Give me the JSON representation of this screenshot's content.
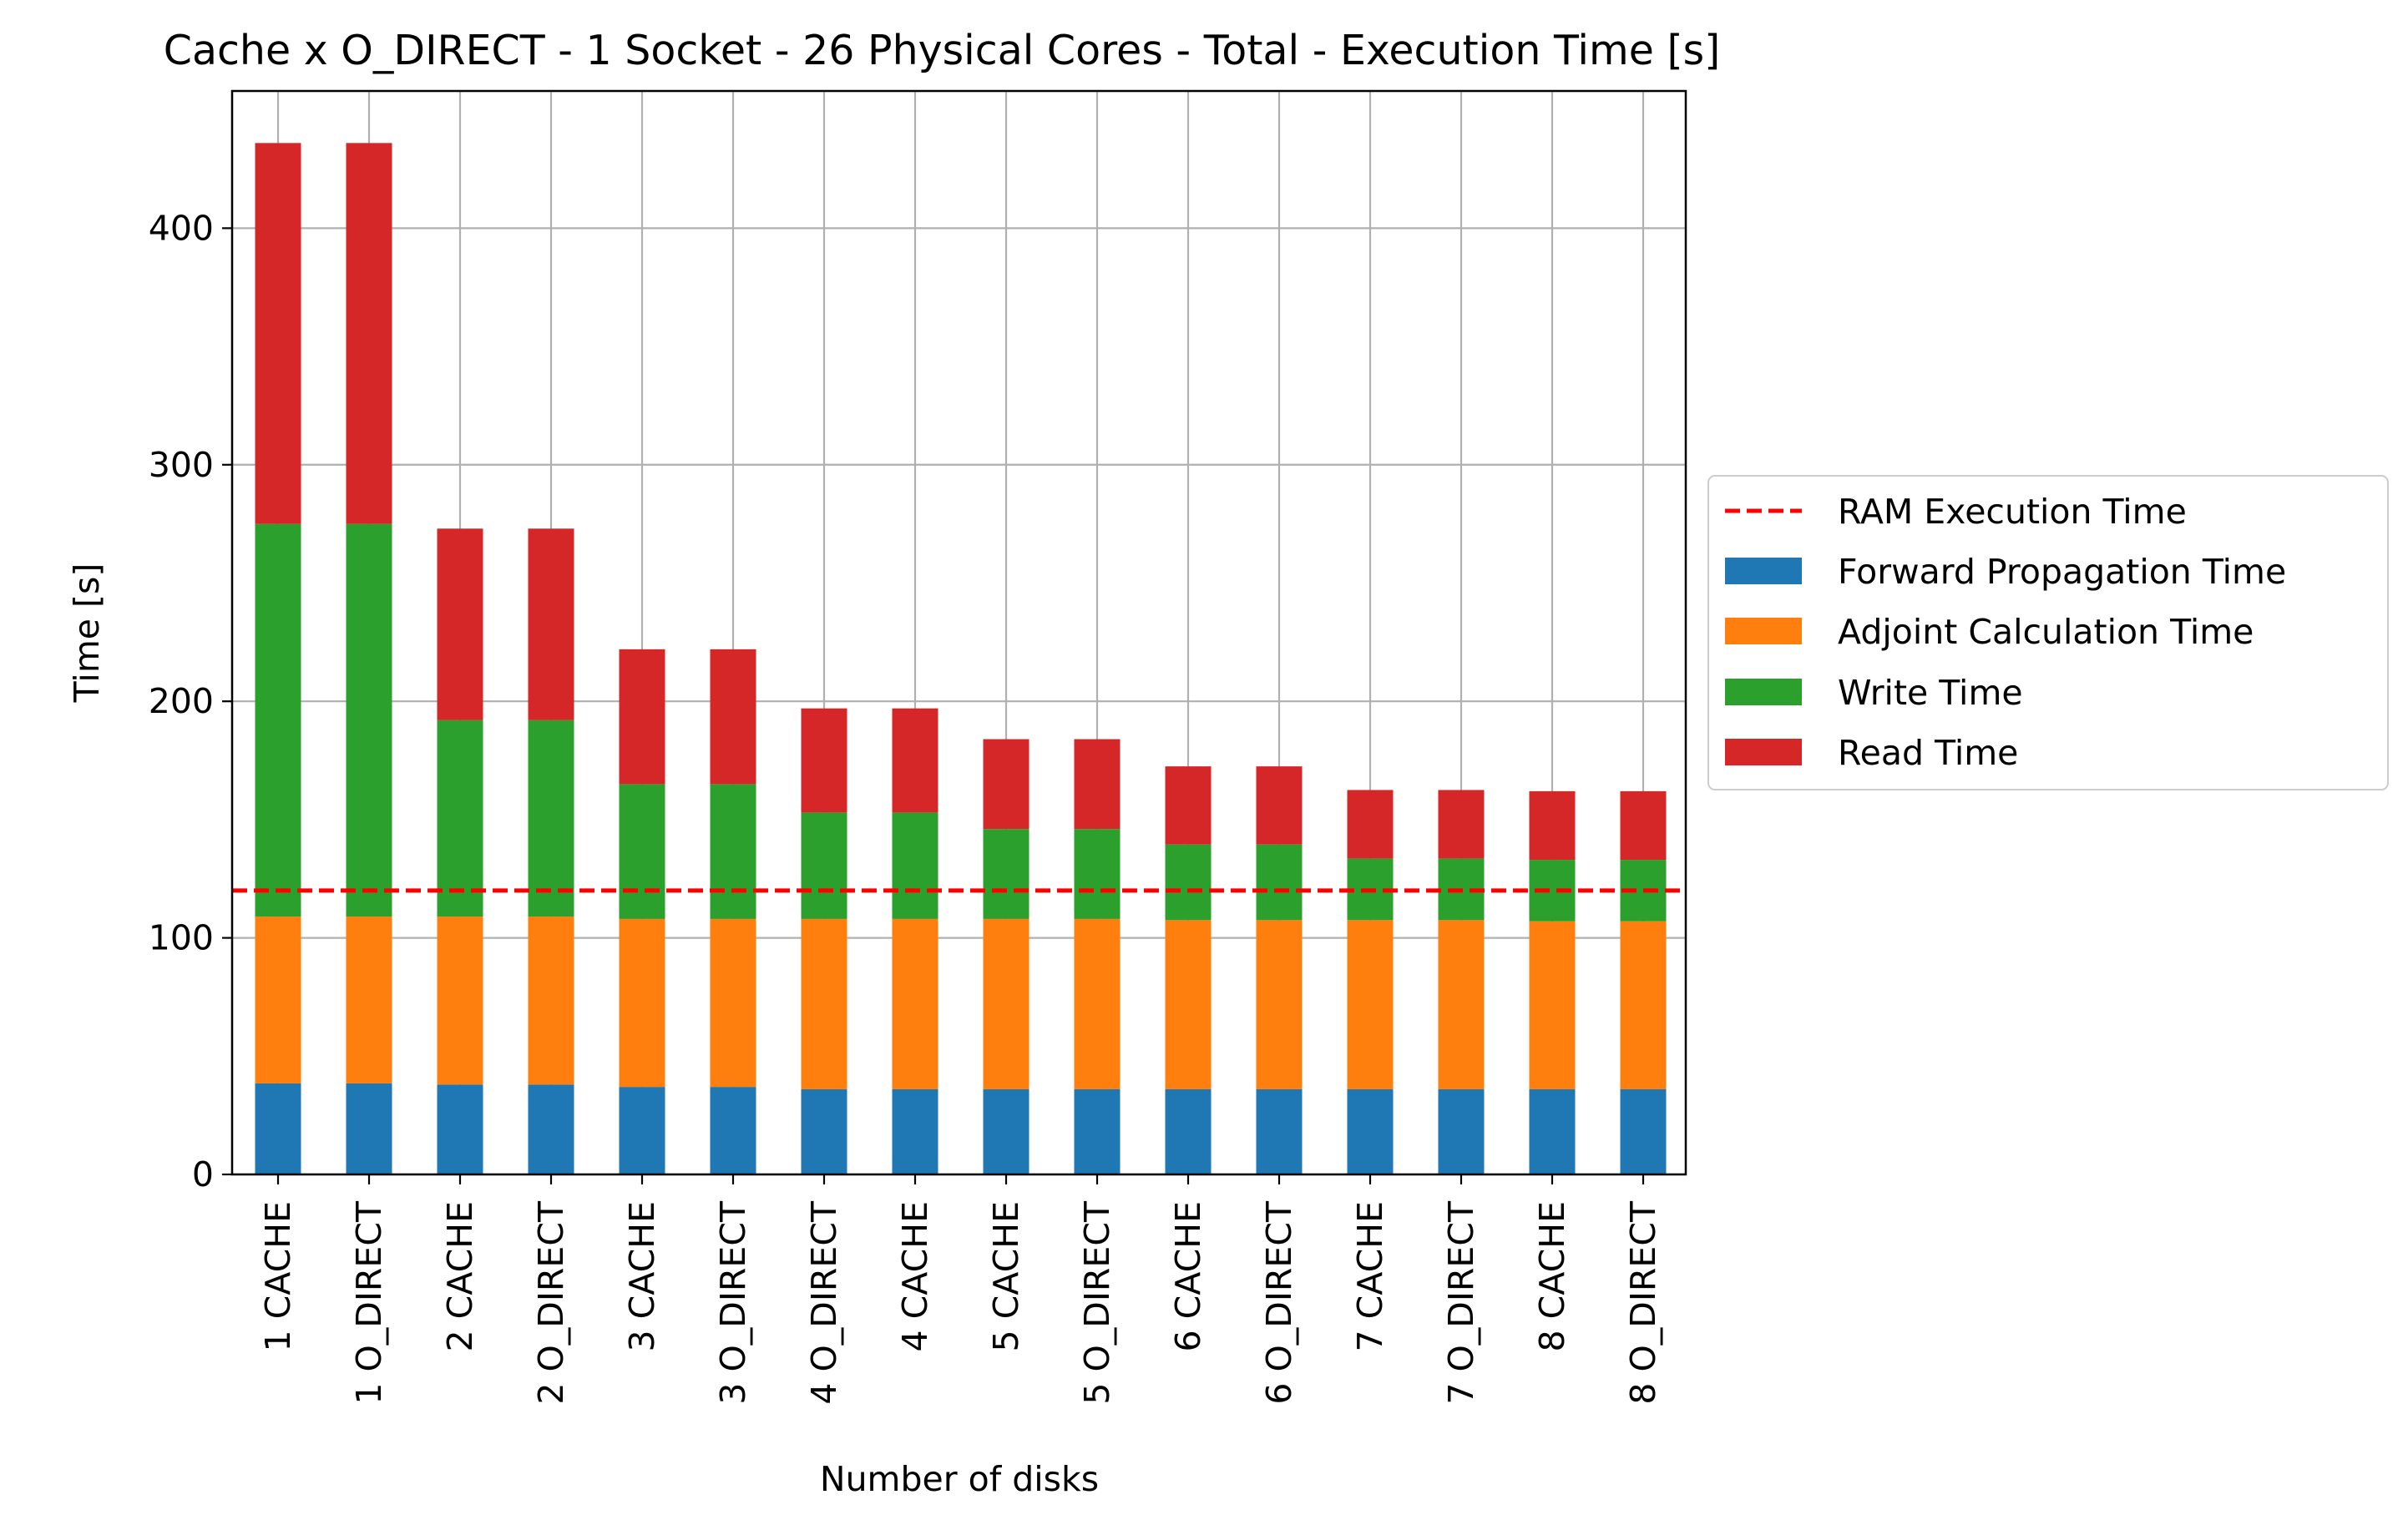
{
  "chart_data": {
    "type": "bar",
    "stacked": true,
    "title": "Cache x O_DIRECT - 1 Socket - 26 Physical Cores - Total - Execution Time [s]",
    "xlabel": "Number of disks",
    "ylabel": "Time [s]",
    "ylim": [
      0,
      458
    ],
    "yticks": [
      0,
      100,
      200,
      300,
      400
    ],
    "grid": true,
    "legend_position": "right, outside plot",
    "categories": [
      "1 CACHE",
      "1 O_DIRECT",
      "2 CACHE",
      "2 O_DIRECT",
      "3 CACHE",
      "3 O_DIRECT",
      "4 O_DIRECT",
      "4 CACHE",
      "5 CACHE",
      "5 O_DIRECT",
      "6 CACHE",
      "6 O_DIRECT",
      "7 CACHE",
      "7 O_DIRECT",
      "8 CACHE",
      "8 O_DIRECT"
    ],
    "series": [
      {
        "name": "Forward Propagation Time",
        "color": "#1f77b4",
        "values": [
          38.5,
          38.5,
          38,
          38,
          37,
          37,
          36,
          36,
          36,
          36,
          36,
          36,
          36,
          36,
          36,
          36
        ]
      },
      {
        "name": "Adjoint Calculation Time",
        "color": "#ff7f0e",
        "values": [
          70.5,
          70.5,
          71,
          71,
          71,
          71,
          72,
          72,
          72,
          72,
          71.5,
          71.5,
          71.5,
          71.5,
          71,
          71
        ]
      },
      {
        "name": "Write Time",
        "color": "#2ca02c",
        "values": [
          166,
          166,
          83,
          83,
          57,
          57,
          45,
          45,
          38,
          38,
          32,
          32,
          26,
          26,
          26,
          26
        ]
      },
      {
        "name": "Read Time",
        "color": "#d62728",
        "values": [
          161,
          161,
          81,
          81,
          57,
          57,
          44,
          44,
          38,
          38,
          33,
          33,
          29,
          29,
          29,
          29
        ]
      }
    ],
    "reference_lines": [
      {
        "name": "RAM Execution Time",
        "value": 120,
        "color": "#ff0000",
        "style": "dashed"
      }
    ]
  }
}
